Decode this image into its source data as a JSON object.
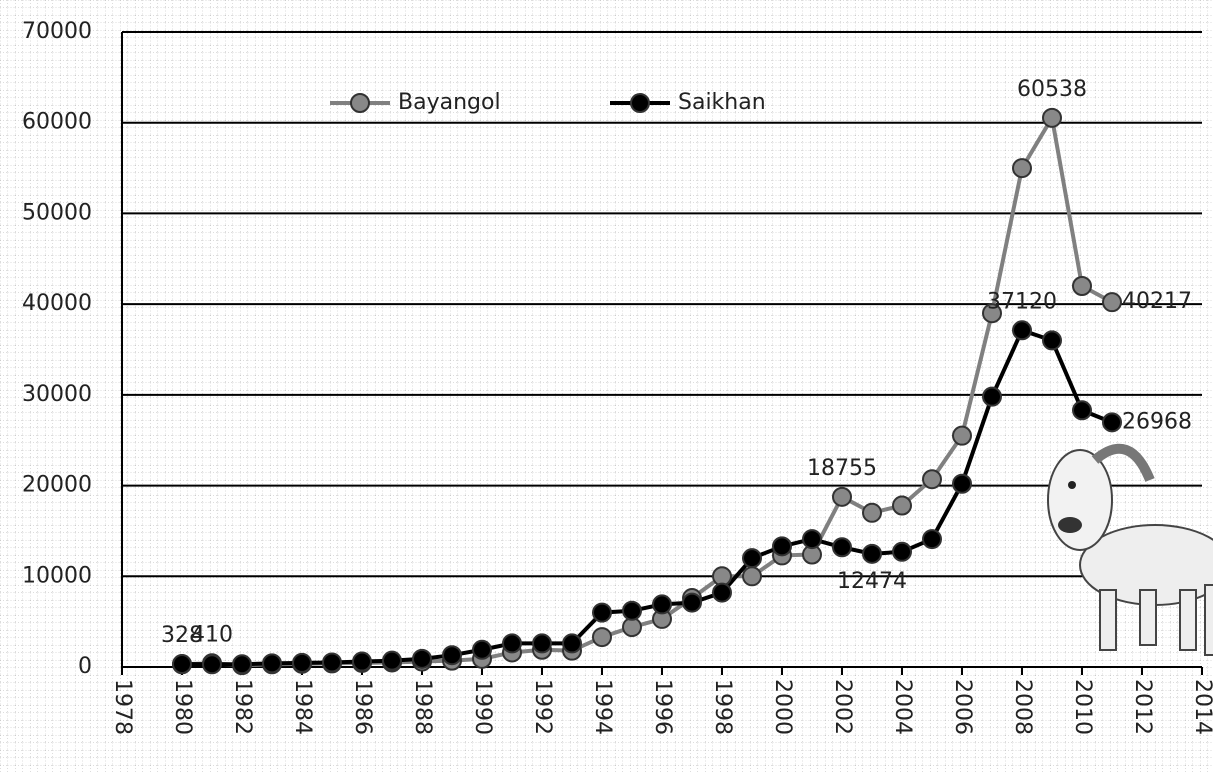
{
  "chart_data": {
    "type": "line",
    "x": [
      1980,
      1981,
      1982,
      1983,
      1984,
      1985,
      1986,
      1987,
      1988,
      1989,
      1990,
      1991,
      1992,
      1993,
      1994,
      1995,
      1996,
      1997,
      1998,
      1999,
      2000,
      2001,
      2002,
      2003,
      2004,
      2005,
      2006,
      2007,
      2008,
      2009,
      2010,
      2011
    ],
    "series": [
      {
        "name": "Bayangol",
        "color": "#808080",
        "values": [
          300,
          410,
          200,
          300,
          350,
          400,
          450,
          500,
          600,
          700,
          900,
          1600,
          1900,
          1800,
          3300,
          4400,
          5300,
          7600,
          10000,
          10000,
          12300,
          12400,
          18755,
          17000,
          17800,
          20700,
          25500,
          39000,
          55000,
          60538,
          42000,
          40217
        ],
        "value_labels": [
          null,
          "410",
          null,
          null,
          null,
          null,
          null,
          null,
          null,
          null,
          null,
          null,
          null,
          null,
          null,
          null,
          null,
          null,
          null,
          null,
          null,
          null,
          "18755",
          null,
          null,
          null,
          null,
          null,
          null,
          "60538",
          null,
          "40217"
        ]
      },
      {
        "name": "Saikhan",
        "color": "#000000",
        "values": [
          328,
          300,
          300,
          400,
          450,
          500,
          600,
          700,
          900,
          1300,
          1900,
          2600,
          2600,
          2600,
          6000,
          6200,
          6900,
          7100,
          8200,
          12000,
          13300,
          14100,
          13200,
          12474,
          12700,
          14100,
          20200,
          29800,
          37120,
          36000,
          28300,
          26968
        ],
        "value_labels": [
          "328",
          null,
          null,
          null,
          null,
          null,
          null,
          null,
          null,
          null,
          null,
          null,
          null,
          null,
          null,
          null,
          null,
          null,
          null,
          null,
          null,
          null,
          null,
          "12474",
          null,
          null,
          null,
          null,
          "37120",
          null,
          null,
          "26968"
        ]
      }
    ],
    "xlim": [
      1978,
      2014
    ],
    "xticks": [
      1978,
      1980,
      1982,
      1984,
      1986,
      1988,
      1990,
      1992,
      1994,
      1996,
      1998,
      2000,
      2002,
      2004,
      2006,
      2008,
      2010,
      2012,
      2014
    ],
    "ylim": [
      0,
      70000
    ],
    "yticks": [
      0,
      10000,
      20000,
      30000,
      40000,
      50000,
      60000,
      70000
    ],
    "grid": true
  }
}
